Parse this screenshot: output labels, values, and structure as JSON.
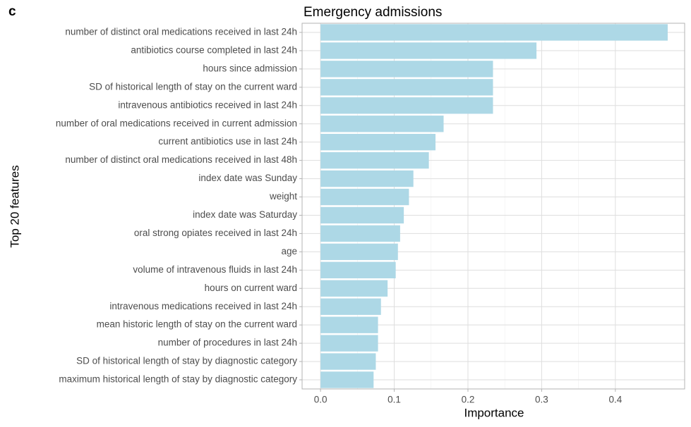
{
  "panel_label": "c",
  "chart_data": {
    "type": "bar",
    "orientation": "horizontal",
    "title": "Emergency admissions",
    "x_label": "Importance",
    "y_label": "Top 20 features",
    "categories": [
      "number of distinct oral medications received in last 24h",
      "antibiotics course completed in last 24h",
      "hours since admission",
      "SD of historical length of stay on the current ward",
      "intravenous antibiotics received in last 24h",
      "number of oral medications received in current admission",
      "current antibiotics use in last 24h",
      "number of distinct oral medications received in last 48h",
      "index date was Sunday",
      "weight",
      "index date was Saturday",
      "oral strong opiates received in last 24h",
      "age",
      "volume of intravenous fluids in last 24h",
      "hours on current ward",
      "intravenous medications received in last 24h",
      "mean historic length of stay on the current ward",
      "number of procedures in last 24h",
      "SD of historical length of stay by diagnostic category",
      "maximum historical length of stay by diagnostic category"
    ],
    "values": [
      0.471,
      0.293,
      0.234,
      0.234,
      0.234,
      0.167,
      0.156,
      0.147,
      0.126,
      0.12,
      0.113,
      0.108,
      0.105,
      0.102,
      0.091,
      0.082,
      0.078,
      0.078,
      0.075,
      0.072
    ],
    "color": "#add8e6",
    "xlim": [
      -0.025,
      0.494
    ],
    "xticks": [
      {
        "value": 0,
        "label": "0.0"
      },
      0.1,
      0.2,
      0.3,
      0.4
    ],
    "grid": true
  }
}
